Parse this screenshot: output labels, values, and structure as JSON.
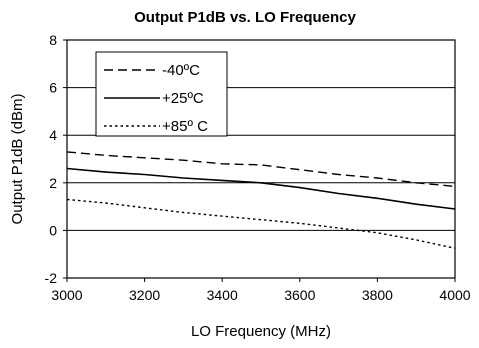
{
  "chart_data": {
    "type": "line",
    "title": "Output P1dB vs. LO Frequency",
    "xlabel": "LO Frequency (MHz)",
    "ylabel": "Output P1dB (dBm)",
    "xlim": [
      3000,
      4000
    ],
    "ylim": [
      -2,
      8
    ],
    "x_ticks": [
      3000,
      3200,
      3400,
      3600,
      3800,
      4000
    ],
    "y_ticks": [
      -2,
      0,
      2,
      4,
      6,
      8
    ],
    "grid": "horizontal",
    "legend_position": "top-left",
    "series": [
      {
        "name": "-40ºC",
        "style": "dashed",
        "x": [
          3000,
          3100,
          3200,
          3300,
          3400,
          3500,
          3600,
          3700,
          3800,
          3900,
          4000
        ],
        "y": [
          3.3,
          3.15,
          3.05,
          2.95,
          2.8,
          2.75,
          2.55,
          2.35,
          2.2,
          2.0,
          1.85
        ]
      },
      {
        "name": "+25ºC",
        "style": "solid",
        "x": [
          3000,
          3100,
          3200,
          3300,
          3400,
          3500,
          3600,
          3700,
          3800,
          3900,
          4000
        ],
        "y": [
          2.6,
          2.45,
          2.35,
          2.2,
          2.1,
          2.0,
          1.8,
          1.55,
          1.35,
          1.1,
          0.9
        ]
      },
      {
        "name": "+85º C",
        "style": "dotted",
        "x": [
          3000,
          3100,
          3200,
          3300,
          3400,
          3500,
          3600,
          3700,
          3800,
          3900,
          4000
        ],
        "y": [
          1.3,
          1.15,
          0.95,
          0.75,
          0.6,
          0.45,
          0.3,
          0.1,
          -0.1,
          -0.4,
          -0.75
        ]
      }
    ]
  }
}
